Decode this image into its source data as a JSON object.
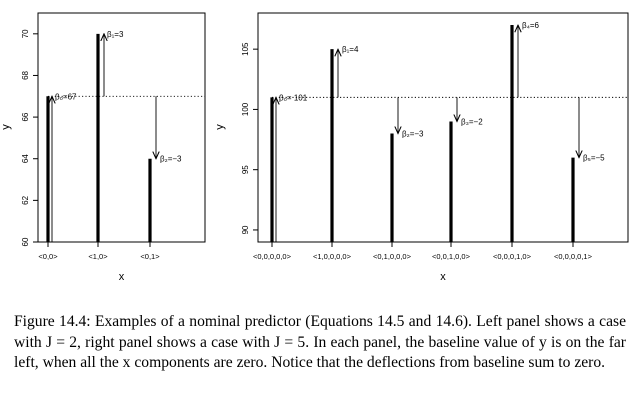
{
  "chart_data": [
    {
      "type": "bar",
      "xlabel": "x",
      "ylabel": "y",
      "ylim": [
        60,
        71
      ],
      "y_ticks": [
        "60",
        "62",
        "64",
        "66",
        "68",
        "70"
      ],
      "categories": [
        "<0,0>",
        "<1,0>",
        "<0,1>"
      ],
      "values": [
        67,
        70,
        64
      ],
      "baseline": 67,
      "baseline_style": "dotted",
      "annotations": [
        {
          "label": "β₀=67",
          "from": 60,
          "to": 67,
          "category": "<0,0>"
        },
        {
          "label": "β₁=3",
          "from": 67,
          "to": 70,
          "category": "<1,0>"
        },
        {
          "label": "β₂=−3",
          "from": 67,
          "to": 64,
          "category": "<0,1>"
        }
      ]
    },
    {
      "type": "bar",
      "xlabel": "x",
      "ylabel": "y",
      "ylim": [
        89,
        108
      ],
      "y_ticks": [
        "90",
        "95",
        "100",
        "105"
      ],
      "categories": [
        "<0,0,0,0,0>",
        "<1,0,0,0,0>",
        "<0,1,0,0,0>",
        "<0,0,1,0,0>",
        "<0,0,0,1,0>",
        "<0,0,0,0,1>"
      ],
      "values": [
        101,
        105,
        98,
        99,
        107,
        96
      ],
      "baseline": 101,
      "baseline_style": "dotted",
      "annotations": [
        {
          "label": "β₀= 101",
          "from": 89,
          "to": 101,
          "category": "<0,0,0,0,0>"
        },
        {
          "label": "β₁=4",
          "from": 101,
          "to": 105,
          "category": "<1,0,0,0,0>"
        },
        {
          "label": "β₂=−3",
          "from": 101,
          "to": 98,
          "category": "<0,1,0,0,0>"
        },
        {
          "label": "β₃=−2",
          "from": 101,
          "to": 99,
          "category": "<0,0,1,0,0>"
        },
        {
          "label": "β₄=6",
          "from": 101,
          "to": 107,
          "category": "<0,0,0,1,0>"
        },
        {
          "label": "β₅=−5",
          "from": 101,
          "to": 96,
          "category": "<0,0,0,0,1>"
        }
      ]
    }
  ],
  "caption": "Figure 14.4: Examples of a nominal predictor (Equations 14.5 and 14.6). Left panel shows a case with J = 2, right panel shows a case with J = 5. In each panel, the baseline value of y is on the far left, when all the x components are zero. Notice that the deflections from baseline sum to zero."
}
